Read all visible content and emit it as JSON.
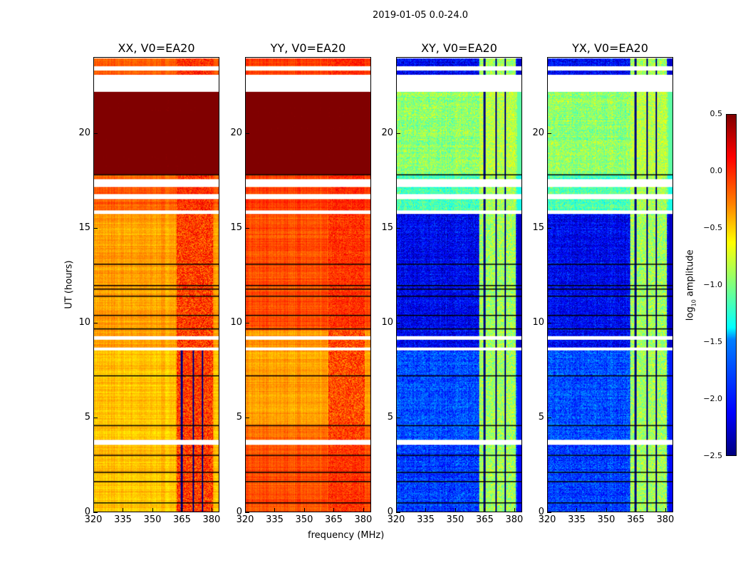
{
  "chart_data": {
    "type": "heatmap",
    "title": "2019-01-05 0.0-24.0",
    "xlabel": "frequency (MHz)",
    "ylabel": "UT (hours)",
    "xlim": [
      320,
      384
    ],
    "ylim": [
      0,
      24
    ],
    "xticks": [
      "320",
      "335",
      "350",
      "365",
      "380"
    ],
    "xtick_values": [
      320,
      335,
      350,
      365,
      380
    ],
    "yticks": [
      "0",
      "5",
      "10",
      "15",
      "20"
    ],
    "ytick_values": [
      0,
      5,
      10,
      15,
      20
    ],
    "colorbar": {
      "label": "log10 amplitude",
      "label_main": "log",
      "label_sub": "10",
      "label_rest": " amplitude",
      "vmin": -2.5,
      "vmax": 0.5,
      "ticks": [
        "0.5",
        "0.0",
        "−0.5",
        "−1.0",
        "−1.5",
        "−2.0",
        "−2.5"
      ],
      "tick_values": [
        0.5,
        0.0,
        -0.5,
        -1.0,
        -1.5,
        -2.0,
        -2.5
      ],
      "colormap": "jet"
    },
    "flagged_intervals_hours": [
      [
        3.55,
        3.8
      ],
      [
        8.55,
        8.7
      ],
      [
        9.1,
        9.3
      ],
      [
        15.75,
        15.95
      ],
      [
        16.55,
        16.8
      ],
      [
        17.2,
        17.6
      ],
      [
        22.2,
        23.1
      ],
      [
        23.35,
        23.55
      ]
    ],
    "segment_lines_hours": [
      0.5,
      1.6,
      2.1,
      3.0,
      4.6,
      7.2,
      9.7,
      10.4,
      11.4,
      11.8,
      12.0,
      13.1,
      17.85
    ],
    "rfi_band_mhz": [
      362,
      381
    ],
    "flagged_channels_mhz": [
      364.8,
      370.9,
      375.6
    ],
    "panels": [
      {
        "name": "XX, V0=EA20",
        "segments": [
          [
            0,
            3.55,
            -0.6
          ],
          [
            3.8,
            8.55,
            -0.6
          ],
          [
            8.7,
            15.75,
            -0.5
          ],
          [
            15.95,
            17.85,
            -0.3
          ],
          [
            17.85,
            22.2,
            0.5
          ],
          [
            23.1,
            24,
            -0.3
          ]
        ],
        "rfi_amp": -0.05
      },
      {
        "name": "YY, V0=EA20",
        "segments": [
          [
            0,
            3.55,
            -0.25
          ],
          [
            3.8,
            4.6,
            -0.35
          ],
          [
            4.6,
            8.55,
            -0.5
          ],
          [
            8.7,
            9.6,
            -0.45
          ],
          [
            9.6,
            15.75,
            -0.25
          ],
          [
            15.95,
            17.85,
            -0.2
          ],
          [
            17.85,
            22.2,
            0.5
          ],
          [
            23.1,
            24,
            -0.2
          ]
        ],
        "rfi_amp": -0.1
      },
      {
        "name": "XY, V0=EA20",
        "segments": [
          [
            0,
            3.55,
            -2.1
          ],
          [
            3.8,
            8.55,
            -2.05
          ],
          [
            8.7,
            15.75,
            -2.3
          ],
          [
            15.95,
            17.85,
            -1.3
          ],
          [
            17.85,
            22.2,
            -1.1
          ],
          [
            23.1,
            24,
            -2.3
          ]
        ],
        "rfi_amp": -0.9
      },
      {
        "name": "YX, V0=EA20",
        "segments": [
          [
            0,
            3.55,
            -2.1
          ],
          [
            3.8,
            8.55,
            -2.05
          ],
          [
            8.7,
            15.75,
            -2.3
          ],
          [
            15.95,
            17.85,
            -1.3
          ],
          [
            17.85,
            22.2,
            -1.1
          ],
          [
            23.1,
            24,
            -2.3
          ]
        ],
        "rfi_amp": -0.9
      }
    ]
  }
}
